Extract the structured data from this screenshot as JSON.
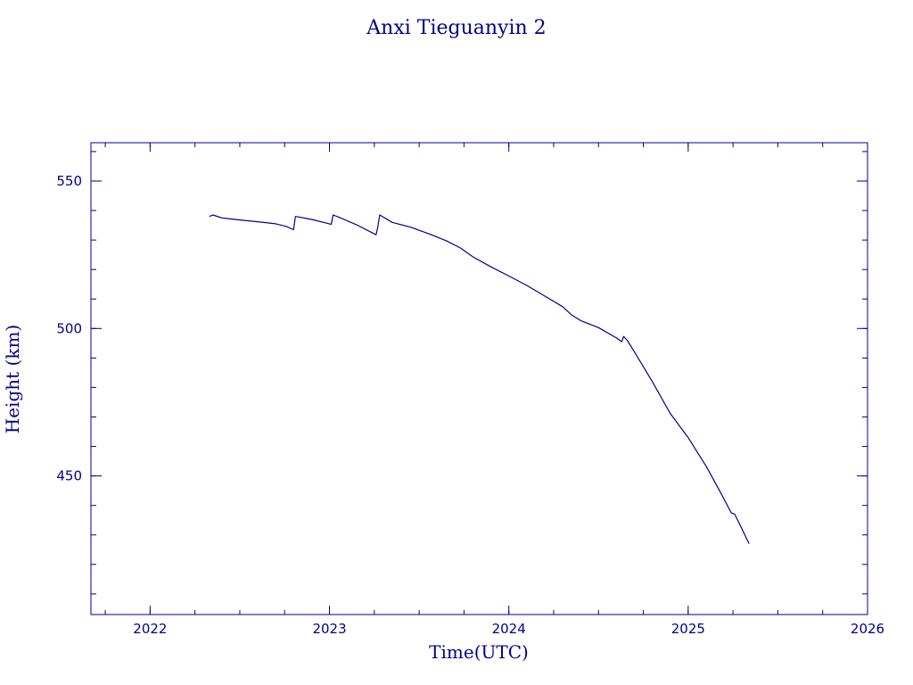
{
  "chart_data": {
    "type": "line",
    "title": "Anxi Tieguanyin 2",
    "xlabel": "Time(UTC)",
    "ylabel": "Height (km)",
    "xlim": [
      2021.67,
      2026.0
    ],
    "ylim": [
      403,
      563
    ],
    "x_ticks": [
      2022,
      2023,
      2024,
      2025,
      2026
    ],
    "x_minor_step": 0.25,
    "y_ticks": [
      450,
      500,
      550
    ],
    "y_minor_step": 10,
    "grid": false,
    "colors": {
      "line": "#00008b",
      "text": "#00008b",
      "frame": "#00008b"
    },
    "series": [
      {
        "x": [
          2022.33,
          2022.35,
          2022.4,
          2022.5,
          2022.6,
          2022.7,
          2022.76,
          2022.8,
          2022.81,
          2022.83,
          2022.9,
          2022.98,
          2023.01,
          2023.02,
          2023.05,
          2023.15,
          2023.26,
          2023.27,
          2023.28,
          2023.35,
          2023.45,
          2023.55,
          2023.65,
          2023.73,
          2023.8,
          2023.9,
          2024.0,
          2024.1,
          2024.2,
          2024.3,
          2024.35,
          2024.4,
          2024.5,
          2024.6,
          2024.63,
          2024.64,
          2024.66,
          2024.7,
          2024.8,
          2024.9,
          2025.0,
          2025.1,
          2025.18,
          2025.24,
          2025.26,
          2025.3,
          2025.34
        ],
        "y": [
          538,
          538.5,
          537.5,
          536.8,
          536.2,
          535.5,
          534.6,
          533.5,
          538,
          537.8,
          537,
          535.8,
          535.3,
          538.5,
          537.8,
          535.2,
          531.8,
          534.5,
          538.5,
          536,
          534.4,
          532.2,
          529.8,
          527.3,
          524.3,
          520.9,
          517.8,
          514.6,
          511.0,
          507.4,
          504.6,
          502.7,
          500.3,
          496.8,
          495.5,
          497.3,
          496,
          492.1,
          482.0,
          471.2,
          463.0,
          453.3,
          444.4,
          437.5,
          437.0,
          432.0,
          427.0
        ]
      }
    ]
  }
}
